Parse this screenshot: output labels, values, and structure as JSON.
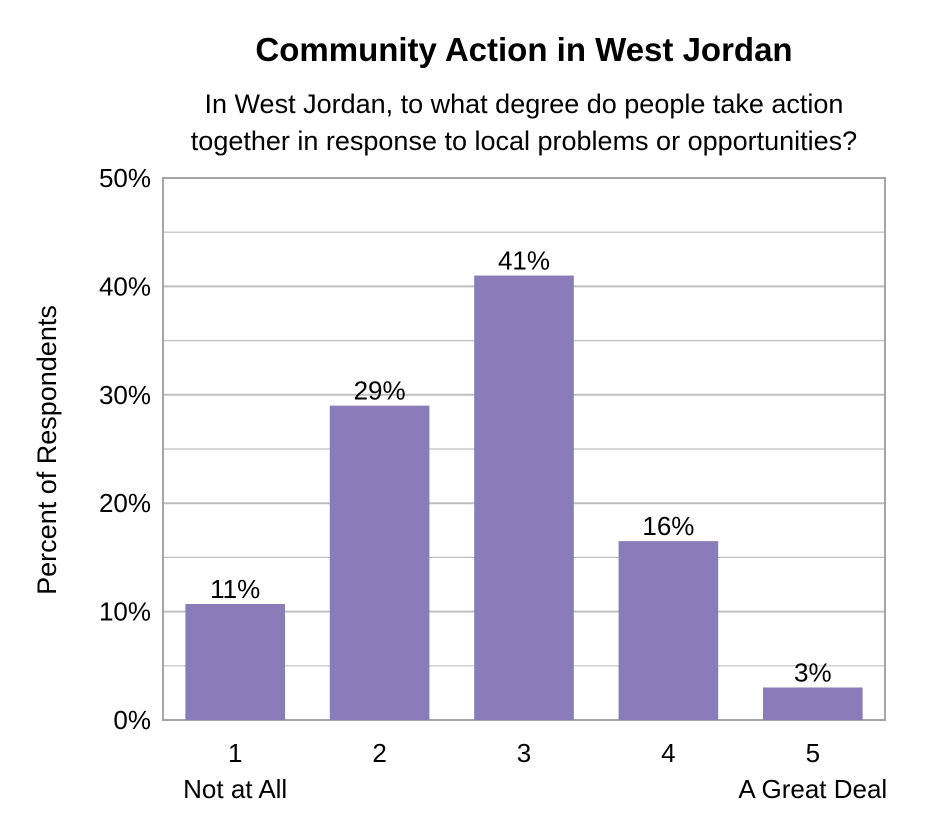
{
  "chart_data": {
    "type": "bar",
    "title": "Community Action in West Jordan",
    "subtitle_lines": [
      "In West Jordan, to what degree do people take action",
      "together in response to local problems or opportunities?"
    ],
    "ylabel": "Percent of Respondents",
    "xlabel": "",
    "categories": [
      "1",
      "2",
      "3",
      "4",
      "5"
    ],
    "category_sublabels": [
      "Not at All",
      "",
      "",
      "",
      "A Great Deal"
    ],
    "values": [
      10.7,
      29.0,
      41.0,
      16.5,
      3.0
    ],
    "data_labels": [
      "11%",
      "29%",
      "41%",
      "16%",
      "3%"
    ],
    "ylim": [
      0,
      50
    ],
    "yticks": [
      0,
      10,
      20,
      30,
      40,
      50
    ],
    "ytick_labels": [
      "0%",
      "10%",
      "20%",
      "30%",
      "40%",
      "50%"
    ],
    "grid": true,
    "legend": "none",
    "bar_color": "#8a7cb8",
    "grid_color": "#bfbfbf"
  }
}
